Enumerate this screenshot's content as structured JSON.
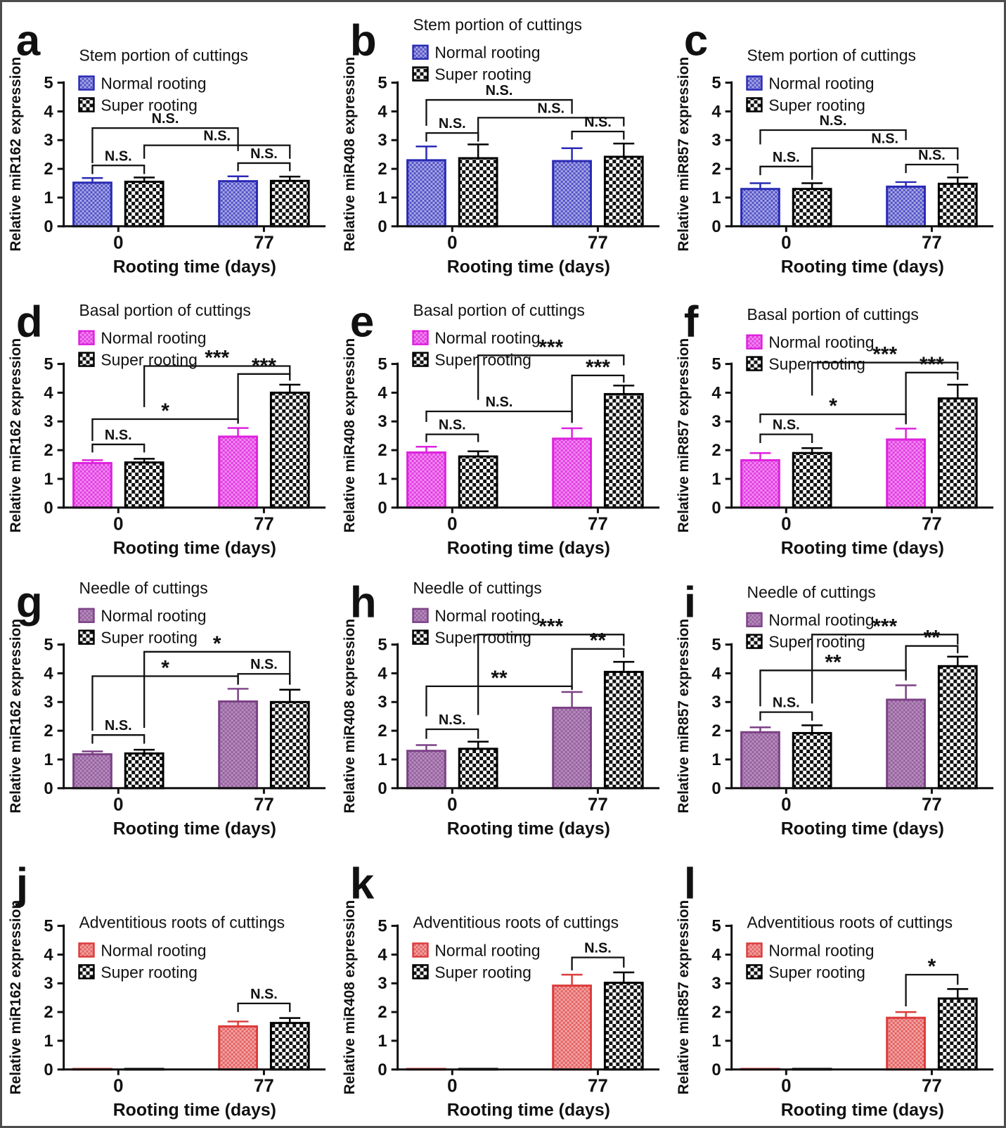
{
  "style": {
    "frame_color": "#4d4d4d",
    "background": "#ffffff",
    "axis_color": "#111111",
    "text_color": "#111111",
    "super_border": "#000000",
    "super_checker": "#111111",
    "super_bg": "#ffffff"
  },
  "chart_data": [
    {
      "id": "a",
      "panel_label": "a",
      "type": "bar",
      "title": "Stem portion of cuttings",
      "ylabel": "Relative miR162 expression",
      "xlabel": "Rooting time (days)",
      "ylim": [
        0,
        5
      ],
      "yticks": [
        0,
        1,
        2,
        3,
        4,
        5
      ],
      "categories": [
        "0",
        "77"
      ],
      "legend": [
        "Normal rooting",
        "Super rooting"
      ],
      "colors": {
        "border": "#2a2ab5",
        "fill_bg": "#a8a8e4",
        "fill_fg": "#5252c8"
      },
      "series": [
        {
          "name": "Normal rooting",
          "values": [
            1.52,
            1.57
          ],
          "errors": [
            0.16,
            0.17
          ]
        },
        {
          "name": "Super rooting",
          "values": [
            1.55,
            1.58
          ],
          "errors": [
            0.15,
            0.15
          ]
        }
      ],
      "significance": [
        {
          "from": "N0",
          "to": "S0",
          "label": "N.S.",
          "y": 2.12,
          "d1": 1.82,
          "d2": 1.82
        },
        {
          "from": "N77",
          "to": "S77",
          "label": "N.S.",
          "y": 2.2,
          "d1": 1.92,
          "d2": 1.92
        },
        {
          "from": "S0",
          "to": "S77",
          "label": "N.S.",
          "y": 2.82,
          "d1": 2.35,
          "d2": 2.35
        },
        {
          "from": "N0",
          "to": "N77",
          "label": "N.S.",
          "y": 3.42,
          "d1": 2.2,
          "d2": 2.62
        }
      ]
    },
    {
      "id": "b",
      "panel_label": "b",
      "type": "bar",
      "title": "Stem portion of cuttings",
      "ylabel": "Relative miR408 expression",
      "xlabel": "Rooting time (days)",
      "ylim": [
        0,
        5
      ],
      "yticks": [
        0,
        1,
        2,
        3,
        4,
        5
      ],
      "categories": [
        "0",
        "77"
      ],
      "legend": [
        "Normal rooting",
        "Super rooting"
      ],
      "colors": {
        "border": "#2a2ab5",
        "fill_bg": "#a8a8e4",
        "fill_fg": "#5252c8"
      },
      "series": [
        {
          "name": "Normal rooting",
          "values": [
            2.3,
            2.27
          ],
          "errors": [
            0.48,
            0.45
          ]
        },
        {
          "name": "Super rooting",
          "values": [
            2.37,
            2.42
          ],
          "errors": [
            0.48,
            0.46
          ]
        }
      ],
      "significance": [
        {
          "from": "N0",
          "to": "S0",
          "label": "N.S.",
          "y": 3.25,
          "d1": 2.95,
          "d2": 2.95
        },
        {
          "from": "N77",
          "to": "S77",
          "label": "N.S.",
          "y": 3.3,
          "d1": 3.02,
          "d2": 3.02
        },
        {
          "from": "S0",
          "to": "S77",
          "label": "N.S.",
          "y": 3.78,
          "d1": 3.0,
          "d2": 3.48
        },
        {
          "from": "N0",
          "to": "N77",
          "label": "N.S.",
          "y": 4.4,
          "d1": 3.5,
          "d2": 3.92
        }
      ]
    },
    {
      "id": "c",
      "panel_label": "c",
      "type": "bar",
      "title": "Stem portion of cuttings",
      "ylabel": "Relative miR857 expression",
      "xlabel": "Rooting time (days)",
      "ylim": [
        0,
        5
      ],
      "yticks": [
        0,
        1,
        2,
        3,
        4,
        5
      ],
      "categories": [
        "0",
        "77"
      ],
      "legend": [
        "Normal rooting",
        "Super rooting"
      ],
      "colors": {
        "border": "#2a2ab5",
        "fill_bg": "#a8a8e4",
        "fill_fg": "#5252c8"
      },
      "series": [
        {
          "name": "Normal rooting",
          "values": [
            1.3,
            1.38
          ],
          "errors": [
            0.2,
            0.16
          ]
        },
        {
          "name": "Super rooting",
          "values": [
            1.3,
            1.48
          ],
          "errors": [
            0.2,
            0.22
          ]
        }
      ],
      "significance": [
        {
          "from": "N0",
          "to": "S0",
          "label": "N.S.",
          "y": 2.08,
          "d1": 1.78,
          "d2": 1.78
        },
        {
          "from": "N77",
          "to": "S77",
          "label": "N.S.",
          "y": 2.15,
          "d1": 1.85,
          "d2": 1.85
        },
        {
          "from": "S0",
          "to": "S77",
          "label": "N.S.",
          "y": 2.72,
          "d1": 1.62,
          "d2": 2.32
        },
        {
          "from": "N0",
          "to": "N77",
          "label": "N.S.",
          "y": 3.35,
          "d1": 2.85,
          "d2": 3.0
        }
      ]
    },
    {
      "id": "d",
      "panel_label": "d",
      "type": "bar",
      "title": "Basal portion of cuttings",
      "ylabel": "Relative miR162 expression",
      "xlabel": "Rooting time (days)",
      "ylim": [
        0,
        5
      ],
      "yticks": [
        0,
        1,
        2,
        3,
        4,
        5
      ],
      "categories": [
        "0",
        "77"
      ],
      "legend": [
        "Normal rooting",
        "Super rooting"
      ],
      "colors": {
        "border": "#dd22dd",
        "fill_bg": "#f18cf1",
        "fill_fg": "#e23ce2"
      },
      "series": [
        {
          "name": "Normal rooting",
          "values": [
            1.55,
            2.47
          ],
          "errors": [
            0.1,
            0.3
          ]
        },
        {
          "name": "Super rooting",
          "values": [
            1.57,
            4.0
          ],
          "errors": [
            0.13,
            0.28
          ]
        }
      ],
      "significance": [
        {
          "from": "N0",
          "to": "S0",
          "label": "N.S.",
          "y": 2.2,
          "d1": 1.92,
          "d2": 1.92
        },
        {
          "from": "N0",
          "to": "N77",
          "label": "*",
          "y": 3.08,
          "d1": 2.32,
          "d2": 2.92
        },
        {
          "from": "N77",
          "to": "S77",
          "label": "***",
          "y": 4.65,
          "d1": 3.0,
          "d2": 4.42
        },
        {
          "from": "S0",
          "to": "S77",
          "label": "***",
          "y": 4.93,
          "d1": 3.5,
          "d2": 4.62
        }
      ]
    },
    {
      "id": "e",
      "panel_label": "e",
      "type": "bar",
      "title": "Basal portion of cuttings",
      "ylabel": "Relative miR408 expression",
      "xlabel": "Rooting time (days)",
      "ylim": [
        0,
        5
      ],
      "yticks": [
        0,
        1,
        2,
        3,
        4,
        5
      ],
      "categories": [
        "0",
        "77"
      ],
      "legend": [
        "Normal rooting",
        "Super rooting"
      ],
      "colors": {
        "border": "#dd22dd",
        "fill_bg": "#f18cf1",
        "fill_fg": "#e23ce2"
      },
      "series": [
        {
          "name": "Normal rooting",
          "values": [
            1.92,
            2.4
          ],
          "errors": [
            0.2,
            0.36
          ]
        },
        {
          "name": "Super rooting",
          "values": [
            1.78,
            3.95
          ],
          "errors": [
            0.18,
            0.3
          ]
        }
      ],
      "significance": [
        {
          "from": "N0",
          "to": "S0",
          "label": "N.S.",
          "y": 2.55,
          "d1": 2.28,
          "d2": 2.28
        },
        {
          "from": "N0",
          "to": "N77",
          "label": "N.S.",
          "y": 3.35,
          "d1": 2.98,
          "d2": 3.0
        },
        {
          "from": "N77",
          "to": "S77",
          "label": "***",
          "y": 4.6,
          "d1": 2.95,
          "d2": 4.35
        },
        {
          "from": "S0",
          "to": "S77",
          "label": "***",
          "y": 5.3,
          "d1": 3.75,
          "d2": 4.95
        }
      ]
    },
    {
      "id": "f",
      "panel_label": "f",
      "type": "bar",
      "title": "Basal portion of cuttings",
      "ylabel": "Relative miR857 expression",
      "xlabel": "Rooting time (days)",
      "ylim": [
        0,
        5
      ],
      "yticks": [
        0,
        1,
        2,
        3,
        4,
        5
      ],
      "categories": [
        "0",
        "77"
      ],
      "legend": [
        "Normal rooting",
        "Super rooting"
      ],
      "colors": {
        "border": "#dd22dd",
        "fill_bg": "#f18cf1",
        "fill_fg": "#e23ce2"
      },
      "series": [
        {
          "name": "Normal rooting",
          "values": [
            1.65,
            2.37
          ],
          "errors": [
            0.25,
            0.38
          ]
        },
        {
          "name": "Super rooting",
          "values": [
            1.9,
            3.8
          ],
          "errors": [
            0.17,
            0.48
          ]
        }
      ],
      "significance": [
        {
          "from": "N0",
          "to": "S0",
          "label": "N.S.",
          "y": 2.55,
          "d1": 2.25,
          "d2": 2.25
        },
        {
          "from": "N0",
          "to": "N77",
          "label": "*",
          "y": 3.25,
          "d1": 2.95,
          "d2": 2.95
        },
        {
          "from": "N77",
          "to": "S77",
          "label": "***",
          "y": 4.7,
          "d1": 2.9,
          "d2": 4.45
        },
        {
          "from": "S0",
          "to": "S77",
          "label": "***",
          "y": 5.05,
          "d1": 3.9,
          "d2": 4.78
        }
      ]
    },
    {
      "id": "g",
      "panel_label": "g",
      "type": "bar",
      "title": "Needle of cuttings",
      "ylabel": "Relative miR162 expression",
      "xlabel": "Rooting time (days)",
      "ylim": [
        0,
        5
      ],
      "yticks": [
        0,
        1,
        2,
        3,
        4,
        5
      ],
      "categories": [
        "0",
        "77"
      ],
      "legend": [
        "Normal rooting",
        "Super rooting"
      ],
      "colors": {
        "border": "#7c4186",
        "fill_bg": "#b78dbd",
        "fill_fg": "#95619e"
      },
      "series": [
        {
          "name": "Normal rooting",
          "values": [
            1.18,
            3.02
          ],
          "errors": [
            0.1,
            0.44
          ]
        },
        {
          "name": "Super rooting",
          "values": [
            1.21,
            3.0
          ],
          "errors": [
            0.13,
            0.43
          ]
        }
      ],
      "significance": [
        {
          "from": "N0",
          "to": "S0",
          "label": "N.S.",
          "y": 1.85,
          "d1": 1.55,
          "d2": 1.55
        },
        {
          "from": "N0",
          "to": "N77",
          "label": "*",
          "y": 3.9,
          "d1": 2.0,
          "d2": 3.6
        },
        {
          "from": "N77",
          "to": "S77",
          "label": "N.S.",
          "y": 3.98,
          "d1": 3.65,
          "d2": 3.6
        },
        {
          "from": "S0",
          "to": "S77",
          "label": "*",
          "y": 4.75,
          "d1": 2.1,
          "d2": 3.62
        }
      ]
    },
    {
      "id": "h",
      "panel_label": "h",
      "type": "bar",
      "title": "Needle of cuttings",
      "ylabel": "Relative miR408 expression",
      "xlabel": "Rooting time (days)",
      "ylim": [
        0,
        5
      ],
      "yticks": [
        0,
        1,
        2,
        3,
        4,
        5
      ],
      "categories": [
        "0",
        "77"
      ],
      "legend": [
        "Normal rooting",
        "Super rooting"
      ],
      "colors": {
        "border": "#7c4186",
        "fill_bg": "#b78dbd",
        "fill_fg": "#95619e"
      },
      "series": [
        {
          "name": "Normal rooting",
          "values": [
            1.3,
            2.8
          ],
          "errors": [
            0.2,
            0.55
          ]
        },
        {
          "name": "Super rooting",
          "values": [
            1.37,
            4.05
          ],
          "errors": [
            0.25,
            0.35
          ]
        }
      ],
      "significance": [
        {
          "from": "N0",
          "to": "S0",
          "label": "N.S.",
          "y": 2.05,
          "d1": 1.72,
          "d2": 1.72
        },
        {
          "from": "N0",
          "to": "N77",
          "label": "**",
          "y": 3.55,
          "d1": 2.5,
          "d2": 3.42
        },
        {
          "from": "N77",
          "to": "S77",
          "label": "**",
          "y": 4.85,
          "d1": 3.45,
          "d2": 4.55
        },
        {
          "from": "S0",
          "to": "S77",
          "label": "***",
          "y": 5.35,
          "d1": 2.55,
          "d2": 4.95
        }
      ]
    },
    {
      "id": "i",
      "panel_label": "i",
      "type": "bar",
      "title": "Needle of cuttings",
      "ylabel": "Relative miR857 expression",
      "xlabel": "Rooting time (days)",
      "ylim": [
        0,
        5
      ],
      "yticks": [
        0,
        1,
        2,
        3,
        4,
        5
      ],
      "categories": [
        "0",
        "77"
      ],
      "legend": [
        "Normal rooting",
        "Super rooting"
      ],
      "colors": {
        "border": "#7c4186",
        "fill_bg": "#b78dbd",
        "fill_fg": "#95619e"
      },
      "series": [
        {
          "name": "Normal rooting",
          "values": [
            1.95,
            3.08
          ],
          "errors": [
            0.17,
            0.5
          ]
        },
        {
          "name": "Super rooting",
          "values": [
            1.92,
            4.25
          ],
          "errors": [
            0.27,
            0.33
          ]
        }
      ],
      "significance": [
        {
          "from": "N0",
          "to": "S0",
          "label": "N.S.",
          "y": 2.65,
          "d1": 2.35,
          "d2": 2.35
        },
        {
          "from": "N0",
          "to": "N77",
          "label": "**",
          "y": 4.1,
          "d1": 2.85,
          "d2": 3.85
        },
        {
          "from": "N77",
          "to": "S77",
          "label": "**",
          "y": 4.95,
          "d1": 3.75,
          "d2": 4.7
        },
        {
          "from": "S0",
          "to": "S77",
          "label": "***",
          "y": 5.35,
          "d1": 2.95,
          "d2": 5.0
        }
      ]
    },
    {
      "id": "j",
      "panel_label": "j",
      "type": "bar",
      "title": "Adventitious roots of cuttings",
      "ylabel": "Relative miR162 expression",
      "xlabel": "Rooting time (days)",
      "ylim": [
        0,
        5
      ],
      "yticks": [
        0,
        1,
        2,
        3,
        4,
        5
      ],
      "categories": [
        "0",
        "77"
      ],
      "legend": [
        "Normal rooting",
        "Super rooting"
      ],
      "colors": {
        "border": "#dc3c3c",
        "fill_bg": "#f2a5a5",
        "fill_fg": "#e46262"
      },
      "series": [
        {
          "name": "Normal rooting",
          "values": [
            0.02,
            1.5
          ],
          "errors": [
            0,
            0.17
          ]
        },
        {
          "name": "Super rooting",
          "values": [
            0.02,
            1.62
          ],
          "errors": [
            0,
            0.17
          ]
        }
      ],
      "significance": [
        {
          "from": "N77",
          "to": "S77",
          "label": "N.S.",
          "y": 2.3,
          "d1": 2.0,
          "d2": 2.0
        }
      ]
    },
    {
      "id": "k",
      "panel_label": "k",
      "type": "bar",
      "title": "Adventitious roots of cuttings",
      "ylabel": "Relative miR408 expression",
      "xlabel": "Rooting time (days)",
      "ylim": [
        0,
        5
      ],
      "yticks": [
        0,
        1,
        2,
        3,
        4,
        5
      ],
      "categories": [
        "0",
        "77"
      ],
      "legend": [
        "Normal rooting",
        "Super rooting"
      ],
      "colors": {
        "border": "#dc3c3c",
        "fill_bg": "#f2a5a5",
        "fill_fg": "#e46262"
      },
      "series": [
        {
          "name": "Normal rooting",
          "values": [
            0.02,
            2.92
          ],
          "errors": [
            0,
            0.38
          ]
        },
        {
          "name": "Super rooting",
          "values": [
            0.02,
            3.02
          ],
          "errors": [
            0,
            0.36
          ]
        }
      ],
      "significance": [
        {
          "from": "N77",
          "to": "S77",
          "label": "N.S.",
          "y": 3.9,
          "d1": 3.45,
          "d2": 3.55
        }
      ]
    },
    {
      "id": "l",
      "panel_label": "l",
      "type": "bar",
      "title": "Adventitious roots of cuttings",
      "ylabel": "Relative miR857 expression",
      "xlabel": "Rooting time (days)",
      "ylim": [
        0,
        5
      ],
      "yticks": [
        0,
        1,
        2,
        3,
        4,
        5
      ],
      "categories": [
        "0",
        "77"
      ],
      "legend": [
        "Normal rooting",
        "Super rooting"
      ],
      "colors": {
        "border": "#dc3c3c",
        "fill_bg": "#f2a5a5",
        "fill_fg": "#e46262"
      },
      "series": [
        {
          "name": "Normal rooting",
          "values": [
            0.02,
            1.8
          ],
          "errors": [
            0,
            0.2
          ]
        },
        {
          "name": "Super rooting",
          "values": [
            0.02,
            2.47
          ],
          "errors": [
            0,
            0.33
          ]
        }
      ],
      "significance": [
        {
          "from": "N77",
          "to": "S77",
          "label": "*",
          "y": 3.3,
          "d1": 2.2,
          "d2": 2.95
        }
      ]
    }
  ]
}
